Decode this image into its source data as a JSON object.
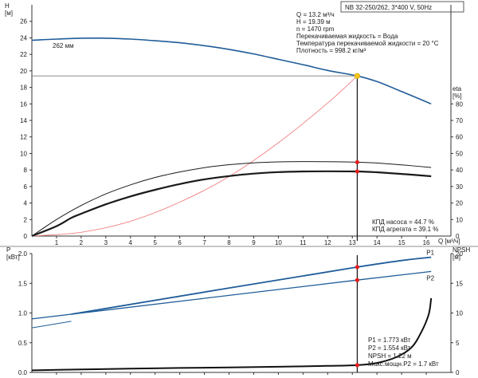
{
  "chart_data": [
    {
      "type": "line",
      "panel": "top",
      "title": "NB 32-250/262, 3*400 V, 50Hz",
      "y_left_label": "H\n[м]",
      "y_right_label": "eta\n[%]",
      "xlabel": "Q [м³/ч]",
      "xlim": [
        0,
        17
      ],
      "x_ticks": [
        1,
        2,
        3,
        4,
        5,
        6,
        7,
        8,
        9,
        10,
        11,
        12,
        13,
        14,
        15,
        16
      ],
      "ylim_left": [
        0,
        28
      ],
      "y_ticks_left": [
        2,
        4,
        6,
        8,
        10,
        12,
        14,
        16,
        18,
        20,
        22,
        24,
        26
      ],
      "ylim_right": [
        0,
        140
      ],
      "y_ticks_right": [
        10,
        20,
        30,
        40,
        50,
        60,
        70,
        80
      ],
      "grid": false,
      "series": [
        {
          "name": "262 мм",
          "axis": "left",
          "color": "#1f5c99",
          "points": [
            [
              0,
              23.7
            ],
            [
              1,
              23.85
            ],
            [
              2,
              23.95
            ],
            [
              3,
              23.95
            ],
            [
              4,
              23.85
            ],
            [
              5,
              23.65
            ],
            [
              6,
              23.4
            ],
            [
              7,
              23.05
            ],
            [
              8,
              22.6
            ],
            [
              9,
              22.05
            ],
            [
              10,
              21.4
            ],
            [
              11,
              20.75
            ],
            [
              12,
              20.05
            ],
            [
              13.2,
              19.39
            ],
            [
              14,
              18.7
            ],
            [
              15,
              17.5
            ],
            [
              16.2,
              16.0
            ]
          ]
        },
        {
          "axis": "left",
          "color": "#f08080",
          "points": [
            [
              0,
              0
            ],
            [
              2,
              0.45
            ],
            [
              4,
              1.8
            ],
            [
              6,
              4.1
            ],
            [
              8,
              7.2
            ],
            [
              10,
              11.3
            ],
            [
              12,
              16.1
            ],
            [
              13.2,
              19.39
            ]
          ]
        },
        {
          "axis": "right",
          "color": "#1a1a1a",
          "width": "thin",
          "points": [
            [
              0,
              0
            ],
            [
              1,
              10
            ],
            [
              2,
              18.5
            ],
            [
              3,
              25.5
            ],
            [
              4,
              31
            ],
            [
              5,
              35.5
            ],
            [
              6,
              38.8
            ],
            [
              7,
              41.4
            ],
            [
              8,
              43.2
            ],
            [
              9,
              44.3
            ],
            [
              10,
              44.9
            ],
            [
              11,
              45.1
            ],
            [
              12,
              45.0
            ],
            [
              13.2,
              44.7
            ],
            [
              14,
              44.2
            ],
            [
              15,
              43.1
            ],
            [
              16.2,
              41.5
            ]
          ]
        },
        {
          "axis": "right",
          "color": "#1a1a1a",
          "width": "thick",
          "points": [
            [
              0,
              0
            ],
            [
              1,
              6
            ],
            [
              1.6,
              11
            ],
            [
              2,
              13.5
            ],
            [
              3,
              19.2
            ],
            [
              4,
              24
            ],
            [
              5,
              28
            ],
            [
              6,
              31.5
            ],
            [
              7,
              34.3
            ],
            [
              8,
              36.3
            ],
            [
              9,
              37.8
            ],
            [
              10,
              38.7
            ],
            [
              11,
              39.1
            ],
            [
              12,
              39.2
            ],
            [
              13.2,
              39.1
            ],
            [
              14,
              38.6
            ],
            [
              15,
              37.6
            ],
            [
              16.2,
              36.2
            ]
          ]
        }
      ],
      "operating_point": {
        "q": 13.2,
        "h": 19.39,
        "eta_pump": 44.7,
        "eta_unit": 39.1
      },
      "annotations": {
        "curve_label": "262 мм",
        "info_lines": [
          "Q = 13.2 м³/ч",
          "H = 19.39 м",
          "n = 1470 rpm",
          "Перекачиваемая жидкость = Вода",
          "Температура перекачиваемой жидкости = 20 °C",
          "Плотность = 998.2 кг/м³"
        ],
        "eta_lines": [
          "КПД насоса = 44.7 %",
          "КПД агрегата = 39.1 %"
        ]
      }
    },
    {
      "type": "line",
      "panel": "bottom",
      "y_left_label": "P\n[кВт]",
      "y_right_label": "NPSH\n[м]",
      "xlim": [
        0,
        17
      ],
      "ylim_left": [
        0,
        2.0
      ],
      "y_ticks_left": [
        "0.0",
        "0.5",
        "1.0",
        "1.5",
        "2.0"
      ],
      "ylim_right": [
        0,
        20
      ],
      "y_ticks_right": [
        0,
        5,
        10,
        15,
        20
      ],
      "grid": false,
      "series": [
        {
          "name": "P1",
          "axis": "left",
          "color": "#1f5c99",
          "points": [
            [
              1.6,
              0.98
            ],
            [
              13.2,
              1.773
            ],
            [
              16.2,
              1.94
            ]
          ]
        },
        {
          "name": "P2",
          "axis": "left",
          "color": "#1f5c99",
          "points": [
            [
              0,
              0.9
            ],
            [
              13.2,
              1.554
            ],
            [
              16.2,
              1.7
            ]
          ]
        },
        {
          "axis": "left",
          "color": "#1f5c99",
          "width": "thin",
          "points": [
            [
              0,
              0.75
            ],
            [
              1.6,
              0.86
            ]
          ]
        },
        {
          "axis": "right",
          "color": "#111111",
          "points": [
            [
              0,
              0.35
            ],
            [
              2,
              0.5
            ],
            [
              4,
              0.65
            ],
            [
              6,
              0.75
            ],
            [
              8,
              0.85
            ],
            [
              10,
              0.95
            ],
            [
              12,
              1.1
            ],
            [
              13.2,
              1.22
            ],
            [
              14,
              1.6
            ],
            [
              14.8,
              2.6
            ],
            [
              15.4,
              4.2
            ],
            [
              15.8,
              6.8
            ],
            [
              16.1,
              9.8
            ],
            [
              16.2,
              12.5
            ]
          ]
        }
      ],
      "operating_point": {
        "p1": 1.773,
        "p2": 1.554,
        "npsh": 1.22
      },
      "annotations": {
        "info_lines": [
          "P1 = 1.773 кВт",
          "P2 = 1.554 кВт",
          "NPSH = 1.22 м",
          "Макс.мощн.P2 = 1.7 кВт"
        ]
      }
    }
  ]
}
